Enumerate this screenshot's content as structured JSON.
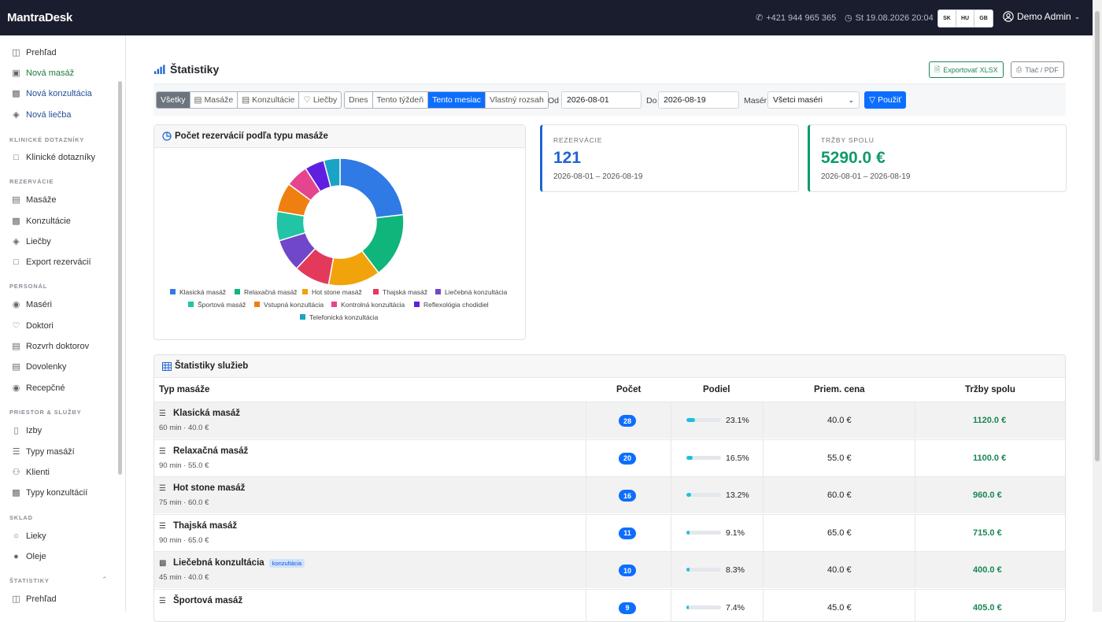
{
  "topbar": {
    "brand": "MantraDesk",
    "phone": "+421 944 965 365",
    "datetime": "St 19.08.2026 20:04",
    "langs": [
      "SK",
      "HU",
      "GB"
    ],
    "user": "Demo Admin"
  },
  "sidebar": {
    "top": [
      {
        "label": "Prehľad",
        "icon": "layout-icon"
      },
      {
        "label": "Nová masáž",
        "icon": "calendar-plus-icon"
      },
      {
        "label": "Nová konzultácia",
        "icon": "clipboard-icon"
      },
      {
        "label": "Nová liečba",
        "icon": "layers-icon"
      }
    ],
    "sections": [
      {
        "title": "KLINICKÉ DOTAZNÍKY",
        "items": [
          {
            "label": "Klinické dotazníky",
            "icon": "file-icon"
          }
        ]
      },
      {
        "title": "REZERVÁCIE",
        "items": [
          {
            "label": "Masáže",
            "icon": "calendar-icon"
          },
          {
            "label": "Konzultácie",
            "icon": "clipboard-icon"
          },
          {
            "label": "Liečby",
            "icon": "layers-icon"
          },
          {
            "label": "Export rezervácií",
            "icon": "file-icon"
          }
        ]
      },
      {
        "title": "PERSONÁL",
        "items": [
          {
            "label": "Maséri",
            "icon": "person-icon"
          },
          {
            "label": "Doktori",
            "icon": "heart-icon"
          },
          {
            "label": "Rozvrh doktorov",
            "icon": "calendar-icon"
          },
          {
            "label": "Dovolenky",
            "icon": "calendar-icon"
          },
          {
            "label": "Recepčné",
            "icon": "person-icon"
          }
        ]
      },
      {
        "title": "PRIESTOR & SLUŽBY",
        "items": [
          {
            "label": "Izby",
            "icon": "door-icon"
          },
          {
            "label": "Typy masáží",
            "icon": "list-icon"
          },
          {
            "label": "Klienti",
            "icon": "people-icon"
          },
          {
            "label": "Typy konzultácií",
            "icon": "clipboard-icon"
          }
        ]
      },
      {
        "title": "SKLAD",
        "items": [
          {
            "label": "Lieky",
            "icon": "pill-icon"
          },
          {
            "label": "Oleje",
            "icon": "droplet-icon"
          }
        ]
      },
      {
        "title": "ŠTATISTIKY",
        "items": [
          {
            "label": "Prehľad",
            "icon": "layout-icon"
          }
        ]
      }
    ]
  },
  "page": {
    "title": "Štatistiky",
    "export_label": "Exportovať XLSX",
    "print_label": "Tlač / PDF"
  },
  "filters": {
    "types": [
      "Všetky",
      "Masáže",
      "Konzultácie",
      "Liečby"
    ],
    "ranges": [
      "Dnes",
      "Tento týždeň",
      "Tento mesiac",
      "Vlastný rozsah"
    ],
    "from_label": "Od",
    "from_value": "2026-08-01",
    "to_label": "Do",
    "to_value": "2026-08-19",
    "masseur_label": "Masér",
    "masseur_value": "Všetci maséri",
    "apply_label": "Použiť"
  },
  "chart_card": {
    "title": "Počet rezervácií podľa typu masáže"
  },
  "chart_data": {
    "type": "pie",
    "categories": [
      "Klasická masáž",
      "Relaxačná masáž",
      "Hot stone masáž",
      "Thajská masáž",
      "Liečebná konzultácia",
      "Športová masáž",
      "Vstupná konzultácia",
      "Kontrolná konzultácia",
      "Reflexológia chodidiel",
      "Telefonická konzultácia"
    ],
    "values": [
      28,
      20,
      16,
      11,
      10,
      9,
      9,
      7,
      6,
      5
    ],
    "colors": [
      "#2f7ae5",
      "#0fb57a",
      "#f0a30a",
      "#e33a5c",
      "#7047c8",
      "#22c4a5",
      "#f07f12",
      "#e5458f",
      "#5f1fe0",
      "#1aa3c4"
    ],
    "donut": true
  },
  "stats": {
    "reservations": {
      "label": "REZERVÁCIE",
      "value": "121",
      "range": "2026-08-01 – 2026-08-19",
      "color": "#1f66d0"
    },
    "revenue": {
      "label": "TRŽBY SPOLU",
      "value": "5290.0 €",
      "range": "2026-08-01 – 2026-08-19",
      "color": "#0f9b6c"
    }
  },
  "services": {
    "title": "Štatistiky služieb",
    "columns": [
      "Typ masáže",
      "Počet",
      "Podiel",
      "Priem. cena",
      "Tržby spolu"
    ],
    "rows": [
      {
        "name": "Klasická masáž",
        "details": "60 min · 40.0 €",
        "count": "28",
        "share": "23.1%",
        "share_value": 23.1,
        "price": "40.0 €",
        "revenue": "1120.0 €",
        "icon": "list-icon",
        "badge": ""
      },
      {
        "name": "Relaxačná masáž",
        "details": "90 min · 55.0 €",
        "count": "20",
        "share": "16.5%",
        "share_value": 16.5,
        "price": "55.0 €",
        "revenue": "1100.0 €",
        "icon": "list-icon",
        "badge": ""
      },
      {
        "name": "Hot stone masáž",
        "details": "75 min · 60.0 €",
        "count": "16",
        "share": "13.2%",
        "share_value": 13.2,
        "price": "60.0 €",
        "revenue": "960.0 €",
        "icon": "list-icon",
        "badge": ""
      },
      {
        "name": "Thajská masáž",
        "details": "90 min · 65.0 €",
        "count": "11",
        "share": "9.1%",
        "share_value": 9.1,
        "price": "65.0 €",
        "revenue": "715.0 €",
        "icon": "list-icon",
        "badge": ""
      },
      {
        "name": "Liečebná konzultácia",
        "details": "45 min · 40.0 €",
        "count": "10",
        "share": "8.3%",
        "share_value": 8.3,
        "price": "40.0 €",
        "revenue": "400.0 €",
        "icon": "clipboard-icon",
        "badge": "konzultácia"
      },
      {
        "name": "Športová masáž",
        "details": "",
        "count": "9",
        "share": "7.4%",
        "share_value": 7.4,
        "price": "45.0 €",
        "revenue": "405.0 €",
        "icon": "list-icon",
        "badge": ""
      }
    ]
  }
}
